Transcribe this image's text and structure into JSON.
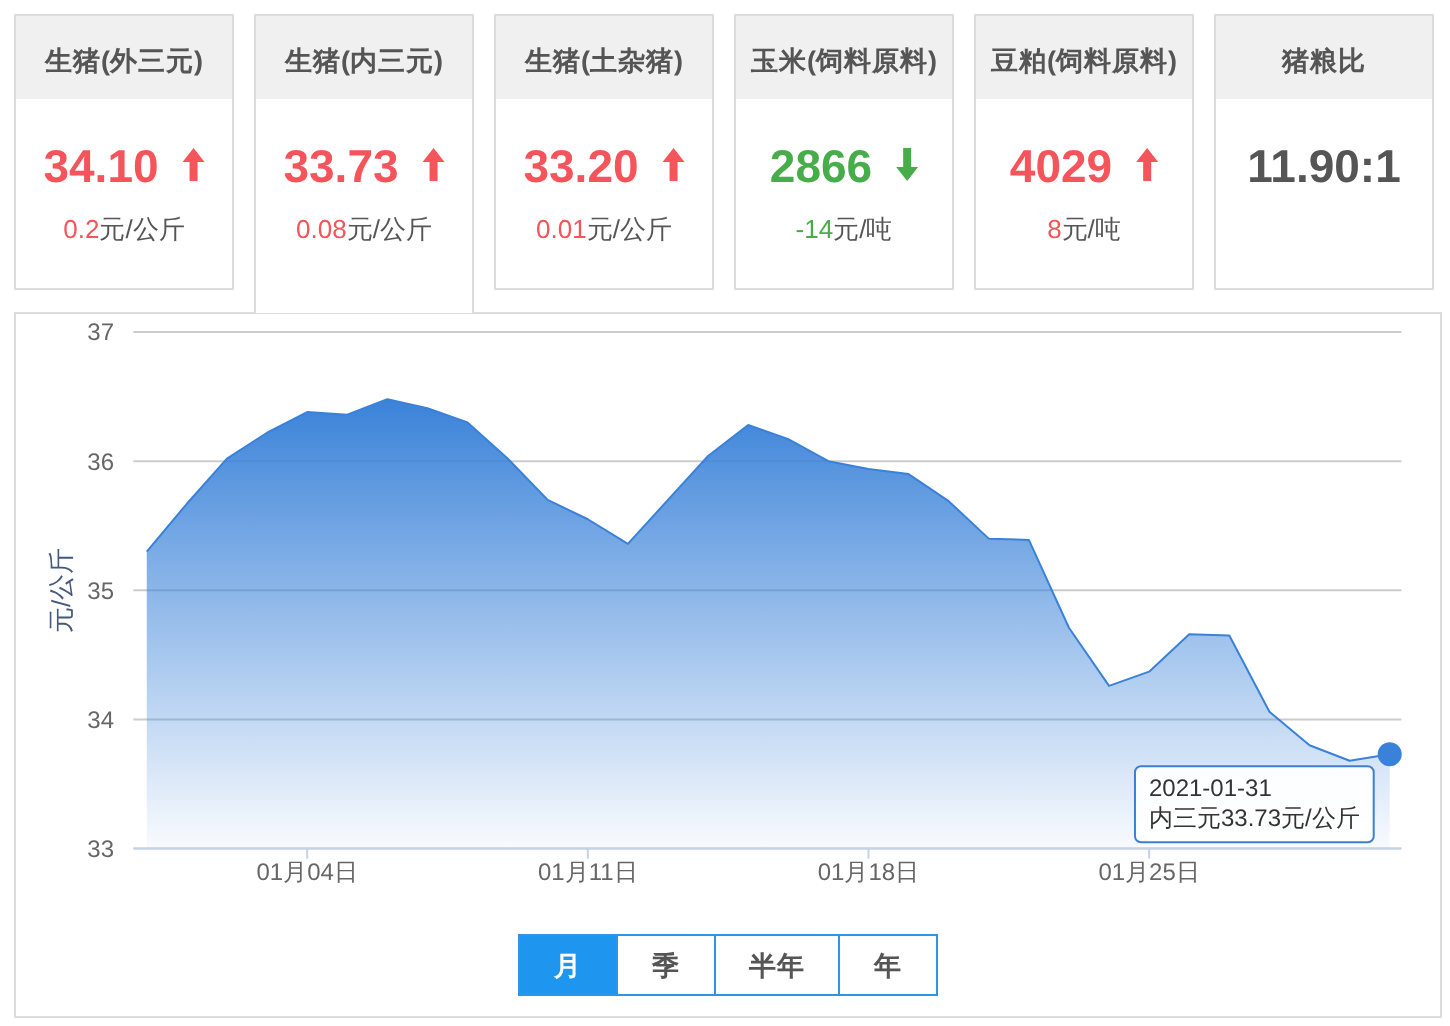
{
  "chart_data": [
    {
      "type": "other",
      "categories": [
        "生猪(外三元)",
        "生猪(内三元)",
        "生猪(土杂猪)",
        "玉米(饲料原料)",
        "豆粕(饲料原料)",
        "猪粮比"
      ],
      "value_labels": [
        "34.10",
        "33.73",
        "33.20",
        "2866",
        "4029",
        "11.90:1"
      ],
      "annotations": [
        "0.2元/公斤",
        "0.08元/公斤",
        "0.01元/公斤",
        "-14元/吨",
        "8元/吨"
      ]
    },
    {
      "type": "area",
      "x": [
        "2020-12-31",
        "2021-01-01",
        "2021-01-02",
        "2021-01-03",
        "2021-01-04",
        "2021-01-05",
        "2021-01-06",
        "2021-01-07",
        "2021-01-08",
        "2021-01-09",
        "2021-01-10",
        "2021-01-11",
        "2021-01-12",
        "2021-01-13",
        "2021-01-14",
        "2021-01-15",
        "2021-01-16",
        "2021-01-17",
        "2021-01-18",
        "2021-01-19",
        "2021-01-20",
        "2021-01-21",
        "2021-01-22",
        "2021-01-23",
        "2021-01-24",
        "2021-01-25",
        "2021-01-26",
        "2021-01-27",
        "2021-01-28",
        "2021-01-29",
        "2021-01-30",
        "2021-01-31"
      ],
      "values": [
        35.3,
        35.67,
        36.02,
        36.22,
        36.38,
        36.36,
        36.48,
        36.41,
        36.3,
        36.02,
        35.7,
        35.55,
        35.36,
        35.7,
        36.04,
        36.28,
        36.17,
        36.0,
        35.94,
        35.9,
        35.69,
        35.4,
        35.39,
        34.71,
        34.26,
        34.37,
        34.66,
        34.65,
        34.06,
        33.8,
        33.68,
        33.73
      ],
      "color": "#3a82d9",
      "ylabel": "元/公斤",
      "xlim": [
        "2020-12-30T16:00",
        "2021-01-31T07:00"
      ],
      "xticks": [
        {
          "value": "2021-01-04",
          "label": "01月04日"
        },
        {
          "value": "2021-01-11",
          "label": "01月11日"
        },
        {
          "value": "2021-01-18",
          "label": "01月18日"
        },
        {
          "value": "2021-01-25",
          "label": "01月25日"
        }
      ],
      "ylim": [
        33,
        37
      ],
      "yticks": [
        33,
        34,
        35,
        36,
        37
      ],
      "grid": "y",
      "annotations": [
        {
          "text": "2021-01-31\n内三元33.73元/公斤",
          "x": "2021-01-31",
          "y": 33.73
        },
        "月",
        "季",
        "半年",
        "年"
      ]
    }
  ]
}
